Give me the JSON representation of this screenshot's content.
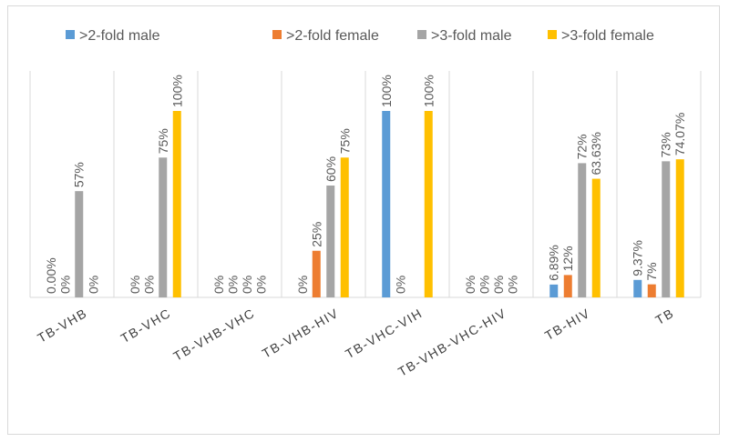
{
  "colors": {
    "male2": "#5b9bd5",
    "female2": "#ed7d31",
    "male3": "#a5a5a5",
    "female3": "#ffc000"
  },
  "chart_data": {
    "type": "bar",
    "title": "",
    "xlabel": "",
    "ylabel": "",
    "ylim": [
      0,
      100
    ],
    "grid": "vertical category dividers only",
    "legend_position": "top",
    "categories": [
      "TB-VHB",
      "TB-VHC",
      "TB-VHB-VHC",
      "TB-VHB-HIV",
      "TB-VHC-VIH",
      "TB-VHB-VHC-HIV",
      "TB-HIV",
      "TB"
    ],
    "series": [
      {
        "name": ">2-fold male",
        "color": "#5b9bd5",
        "values": [
          0,
          0,
          0,
          0,
          100,
          0,
          6.89,
          9.37
        ],
        "labels": [
          "0.00%",
          "0%",
          "0%",
          "0%",
          "100%",
          "0%",
          "6.89%",
          "9.37%"
        ]
      },
      {
        "name": ">2-fold female",
        "color": "#ed7d31",
        "values": [
          0,
          0,
          0,
          25,
          0,
          0,
          12,
          7
        ],
        "labels": [
          "0%",
          "0%",
          "0%",
          "25%",
          "0%",
          "0%",
          "12%",
          "7%"
        ]
      },
      {
        "name": ">3-fold male",
        "color": "#a5a5a5",
        "values": [
          57,
          75,
          0,
          60,
          0,
          0,
          72,
          73
        ],
        "labels": [
          "57%",
          "75%",
          "0%",
          "60%",
          "",
          "0%",
          "72%",
          "73%"
        ]
      },
      {
        "name": ">3-fold female",
        "color": "#ffc000",
        "values": [
          0,
          100,
          0,
          75,
          100,
          0,
          63.63,
          74.07
        ],
        "labels": [
          "0%",
          "100%",
          "0%",
          "75%",
          "100%",
          "0%",
          "63.63%",
          "74.07%"
        ]
      }
    ]
  }
}
